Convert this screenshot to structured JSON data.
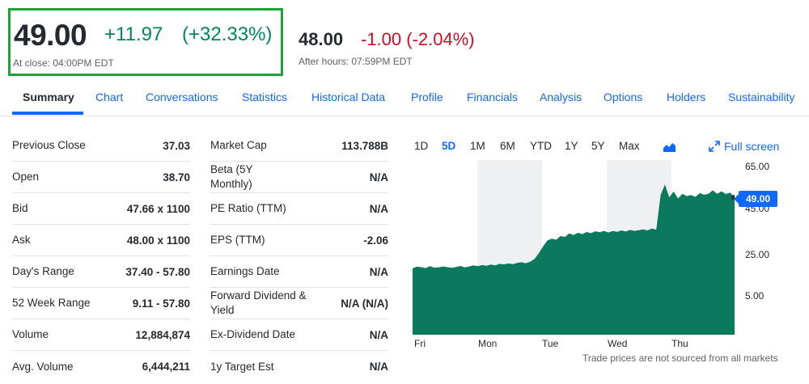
{
  "quote": {
    "price": "49.00",
    "change": "+11.97",
    "change_pct": "(+32.33%)",
    "close_time": "At close: 04:00PM EDT",
    "after_hours_price": "48.00",
    "after_hours_change": "-1.00 (-2.04%)",
    "after_hours_time": "After hours: 07:59PM EDT",
    "colors": {
      "positive": "#00875a",
      "negative": "#d60a22",
      "highlight_box": "#1fa13a",
      "accent": "#0f69ff"
    }
  },
  "tabs": [
    {
      "label": "Summary",
      "active": true
    },
    {
      "label": "Chart"
    },
    {
      "label": "Conversations"
    },
    {
      "label": "Statistics"
    },
    {
      "label": "Historical Data"
    },
    {
      "label": "Profile"
    },
    {
      "label": "Financials"
    },
    {
      "label": "Analysis"
    },
    {
      "label": "Options"
    },
    {
      "label": "Holders"
    },
    {
      "label": "Sustainability"
    }
  ],
  "stats_left": [
    {
      "label": "Previous Close",
      "value": "37.03"
    },
    {
      "label": "Open",
      "value": "38.70"
    },
    {
      "label": "Bid",
      "value": "47.66 x 1100"
    },
    {
      "label": "Ask",
      "value": "48.00 x 1100"
    },
    {
      "label": "Day's Range",
      "value": "37.40 - 57.80"
    },
    {
      "label": "52 Week Range",
      "value": "9.11 - 57.80"
    },
    {
      "label": "Volume",
      "value": "12,884,874"
    },
    {
      "label": "Avg. Volume",
      "value": "6,444,211"
    }
  ],
  "stats_right": [
    {
      "label": "Market Cap",
      "value": "113.788B"
    },
    {
      "label": "Beta (5Y Monthly)",
      "value": "N/A"
    },
    {
      "label": "PE Ratio (TTM)",
      "value": "N/A"
    },
    {
      "label": "EPS (TTM)",
      "value": "-2.06"
    },
    {
      "label": "Earnings Date",
      "value": "N/A"
    },
    {
      "label": "Forward Dividend & Yield",
      "value": "N/A (N/A)"
    },
    {
      "label": "Ex-Dividend Date",
      "value": "N/A"
    },
    {
      "label": "1y Target Est",
      "value": "N/A"
    }
  ],
  "chart_controls": {
    "ranges": [
      {
        "label": "1D"
      },
      {
        "label": "5D",
        "active": true
      },
      {
        "label": "1M"
      },
      {
        "label": "6M"
      },
      {
        "label": "YTD"
      },
      {
        "label": "1Y"
      },
      {
        "label": "5Y"
      },
      {
        "label": "Max"
      }
    ],
    "chart_type_icon": "mountain-chart-icon",
    "full_screen_label": "Full screen",
    "full_screen_icon": "expand-arrows-icon",
    "disclaimer": "Trade prices are not sourced from all markets"
  },
  "chart_data": {
    "type": "area",
    "x_labels": [
      "Fri",
      "Mon",
      "Tue",
      "Wed",
      "Thu"
    ],
    "y_ticks": [
      "65.00",
      "45.00",
      "25.00",
      "5.00"
    ],
    "ylim": [
      -10,
      65
    ],
    "current_price_label": "49.00",
    "fill_color": "#0b7a5c",
    "series": [
      {
        "values": [
          18.5,
          19.2,
          19.0,
          18.6,
          19.4,
          18.8,
          18.9,
          19.3,
          19.0,
          18.7,
          19.1,
          19.5,
          18.9,
          19.3,
          19.8,
          19.4,
          19.9,
          19.6,
          20.1,
          19.8,
          20.4,
          20.2,
          20.6,
          20.3,
          20.8,
          21.1,
          20.7,
          21.3,
          22.5,
          25.0,
          28.0,
          30.5,
          31.2,
          30.8,
          32.4,
          31.9,
          33.5,
          32.8,
          33.8,
          33.2,
          34.1,
          33.6,
          34.4,
          34.0,
          34.6,
          33.9,
          34.5,
          34.2,
          34.8,
          34.3,
          35.0,
          34.6,
          34.9,
          35.2,
          34.8,
          35.6,
          35.1,
          50.0,
          54.5,
          49.0,
          51.5,
          48.5,
          50.5,
          49.5,
          50.0,
          49.2,
          50.8,
          50.1,
          50.5,
          52.0,
          50.5,
          51.6,
          50.4,
          51.0,
          49.0
        ]
      }
    ]
  }
}
